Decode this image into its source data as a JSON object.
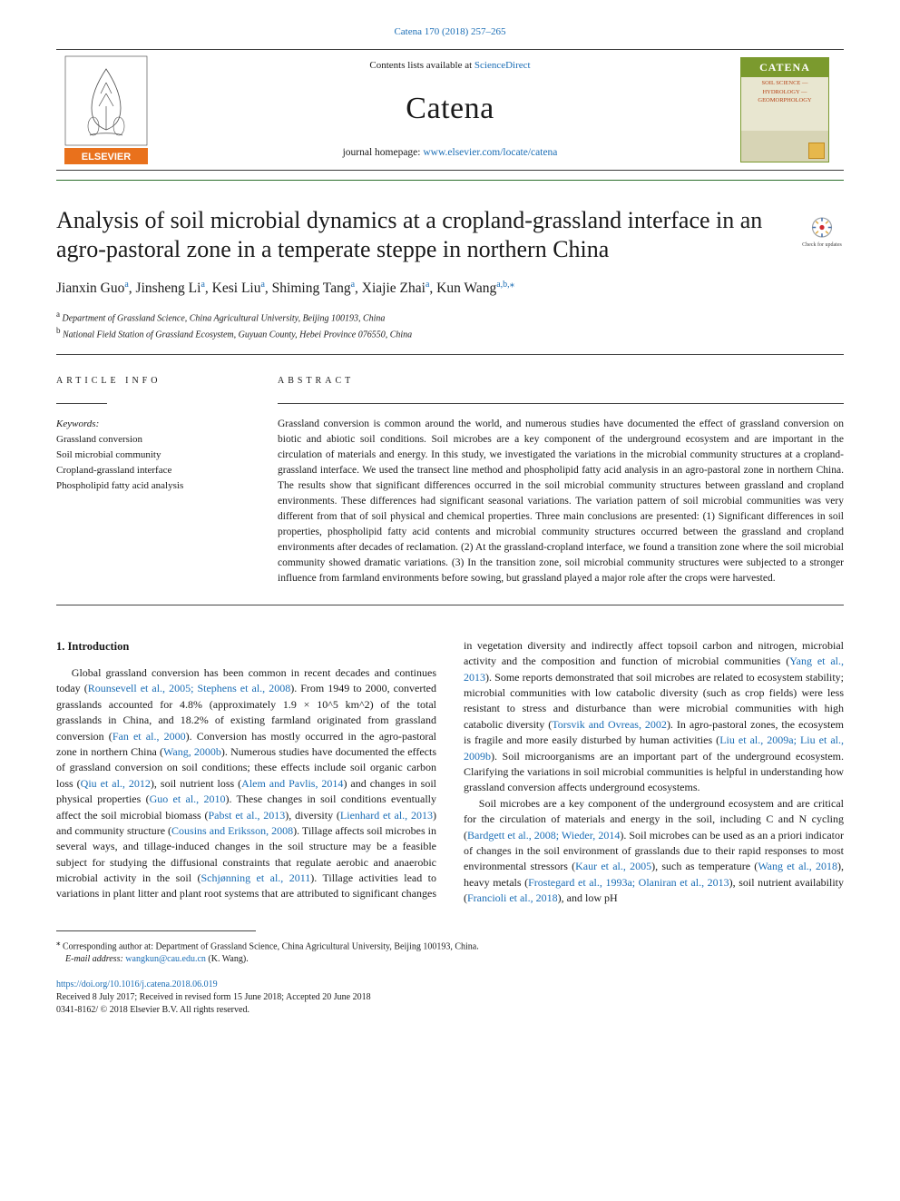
{
  "citation_line_pre": "Catena 170 (2018) 257–265",
  "header": {
    "contents_line_pre": "Contents lists available at ",
    "contents_link": "ScienceDirect",
    "journal_name": "Catena",
    "homepage_pre": "journal homepage: ",
    "homepage_url": "www.elsevier.com/locate/catena",
    "cover_title": "CATENA",
    "cover_sub": "SOIL SCIENCE — HYDROLOGY — GEOMORPHOLOGY"
  },
  "colors": {
    "link": "#1a6db5",
    "green_rule": "#2b6e2b",
    "body_text": "#1a1a1a"
  },
  "title": "Analysis of soil microbial dynamics at a cropland-grassland interface in an agro-pastoral zone in a temperate steppe in northern China",
  "crossmark_label": "Check for updates",
  "authors_html": "Jianxin Guo[a], Jinsheng Li[a], Kesi Liu[a], Shiming Tang[a], Xiajie Zhai[a], Kun Wang[a,b,*]",
  "authors": [
    {
      "name": "Jianxin Guo",
      "aff": "a"
    },
    {
      "name": "Jinsheng Li",
      "aff": "a"
    },
    {
      "name": "Kesi Liu",
      "aff": "a"
    },
    {
      "name": "Shiming Tang",
      "aff": "a"
    },
    {
      "name": "Xiajie Zhai",
      "aff": "a"
    },
    {
      "name": "Kun Wang",
      "aff": "a,b,",
      "corr": true
    }
  ],
  "affiliations": {
    "a": "Department of Grassland Science, China Agricultural University, Beijing 100193, China",
    "b": "National Field Station of Grassland Ecosystem, Guyuan County, Hebei Province 076550, China"
  },
  "info_heading": "ARTICLE INFO",
  "abstract_heading": "ABSTRACT",
  "keywords_label": "Keywords:",
  "keywords": [
    "Grassland conversion",
    "Soil microbial community",
    "Cropland-grassland interface",
    "Phospholipid fatty acid analysis"
  ],
  "abstract": "Grassland conversion is common around the world, and numerous studies have documented the effect of grassland conversion on biotic and abiotic soil conditions. Soil microbes are a key component of the underground ecosystem and are important in the circulation of materials and energy. In this study, we investigated the variations in the microbial community structures at a cropland-grassland interface. We used the transect line method and phospholipid fatty acid analysis in an agro-pastoral zone in northern China. The results show that significant differences occurred in the soil microbial community structures between grassland and cropland environments. These differences had significant seasonal variations. The variation pattern of soil microbial communities was very different from that of soil physical and chemical properties. Three main conclusions are presented: (1) Significant differences in soil properties, phospholipid fatty acid contents and microbial community structures occurred between the grassland and cropland environments after decades of reclamation. (2) At the grassland-cropland interface, we found a transition zone where the soil microbial community showed dramatic variations. (3) In the transition zone, soil microbial community structures were subjected to a stronger influence from farmland environments before sowing, but grassland played a major role after the crops were harvested.",
  "section1_heading": "1. Introduction",
  "intro_col1": "Global grassland conversion has been common in recent decades and continues today (Rounsevell et al., 2005; Stephens et al., 2008). From 1949 to 2000, converted grasslands accounted for 4.8% (approximately 1.9 × 10^5 km^2) of the total grasslands in China, and 18.2% of existing farmland originated from grassland conversion (Fan et al., 2000). Conversion has mostly occurred in the agro-pastoral zone in northern China (Wang, 2000b). Numerous studies have documented the effects of grassland conversion on soil conditions; these effects include soil organic carbon loss (Qiu et al., 2012), soil nutrient loss (Alem and Pavlis, 2014) and changes in soil physical properties (Guo et al., 2010). These changes in soil conditions eventually affect the soil microbial biomass (Pabst et al., 2013), diversity (Lienhard et al., 2013) and community structure (Cousins and Eriksson, 2008). Tillage affects soil microbes in several ways, and tillage-induced changes in the soil structure may be a feasible subject for studying the diffusional constraints that regulate aerobic and anaerobic microbial activity in the soil (Schjønning et al., 2011). Tillage activities lead to variations in plant litter and plant root systems that are attributed to significant ",
  "intro_col2": "changes in vegetation diversity and indirectly affect topsoil carbon and nitrogen, microbial activity and the composition and function of microbial communities (Yang et al., 2013). Some reports demonstrated that soil microbes are related to ecosystem stability; microbial communities with low catabolic diversity (such as crop fields) were less resistant to stress and disturbance than were microbial communities with high catabolic diversity (Torsvik and Ovreas, 2002). In agro-pastoral zones, the ecosystem is fragile and more easily disturbed by human activities (Liu et al., 2009a; Liu et al., 2009b). Soil microorganisms are an important part of the underground ecosystem. Clarifying the variations in soil microbial communities is helpful in understanding how grassland conversion affects underground ecosystems.",
  "intro_p2": "Soil microbes are a key component of the underground ecosystem and are critical for the circulation of materials and energy in the soil, including C and N cycling (Bardgett et al., 2008; Wieder, 2014). Soil microbes can be used as an a priori indicator of changes in the soil environment of grasslands due to their rapid responses to most environmental stressors (Kaur et al., 2005), such as temperature (Wang et al., 2018), heavy metals (Frostegard et al., 1993a; Olaniran et al., 2013), soil nutrient availability (Francioli et al., 2018), and low pH",
  "correspondence": {
    "label": "Corresponding author at: Department of Grassland Science, China Agricultural University, Beijing 100193, China.",
    "email_label": "E-mail address:",
    "email": "wangkun@cau.edu.cn",
    "email_suffix": "(K. Wang)."
  },
  "doi": {
    "url": "https://doi.org/10.1016/j.catena.2018.06.019",
    "received": "Received 8 July 2017; Received in revised form 15 June 2018; Accepted 20 June 2018",
    "issn_copyright": "0341-8162/ © 2018 Elsevier B.V. All rights reserved."
  }
}
